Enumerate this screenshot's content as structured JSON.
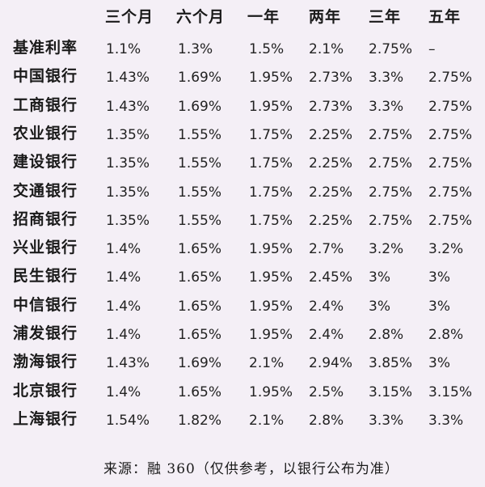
{
  "table": {
    "columns": [
      "三个月",
      "六个月",
      "一年",
      "两年",
      "三年",
      "五年"
    ],
    "rows": [
      {
        "bank": "基准利率",
        "values": [
          "1.1%",
          "1.3%",
          "1.5%",
          "2.1%",
          "2.75%",
          "–"
        ]
      },
      {
        "bank": "中国银行",
        "values": [
          "1.43%",
          "1.69%",
          "1.95%",
          "2.73%",
          "3.3%",
          "2.75%"
        ]
      },
      {
        "bank": "工商银行",
        "values": [
          "1.43%",
          "1.69%",
          "1.95%",
          "2.73%",
          "3.3%",
          "2.75%"
        ]
      },
      {
        "bank": "农业银行",
        "values": [
          "1.35%",
          "1.55%",
          "1.75%",
          "2.25%",
          "2.75%",
          "2.75%"
        ]
      },
      {
        "bank": "建设银行",
        "values": [
          "1.35%",
          "1.55%",
          "1.75%",
          "2.25%",
          "2.75%",
          "2.75%"
        ]
      },
      {
        "bank": "交通银行",
        "values": [
          "1.35%",
          "1.55%",
          "1.75%",
          "2.25%",
          "2.75%",
          "2.75%"
        ]
      },
      {
        "bank": "招商银行",
        "values": [
          "1.35%",
          "1.55%",
          "1.75%",
          "2.25%",
          "2.75%",
          "2.75%"
        ]
      },
      {
        "bank": "兴业银行",
        "values": [
          "1.4%",
          "1.65%",
          "1.95%",
          "2.7%",
          "3.2%",
          "3.2%"
        ]
      },
      {
        "bank": "民生银行",
        "values": [
          "1.4%",
          "1.65%",
          "1.95%",
          "2.45%",
          "3%",
          "3%"
        ]
      },
      {
        "bank": "中信银行",
        "values": [
          "1.4%",
          "1.65%",
          "1.95%",
          "2.4%",
          "3%",
          "3%"
        ]
      },
      {
        "bank": "浦发银行",
        "values": [
          "1.4%",
          "1.65%",
          "1.95%",
          "2.4%",
          "2.8%",
          "2.8%"
        ]
      },
      {
        "bank": "渤海银行",
        "values": [
          "1.43%",
          "1.69%",
          "2.1%",
          "2.94%",
          "3.85%",
          "3%"
        ]
      },
      {
        "bank": "北京银行",
        "values": [
          "1.4%",
          "1.65%",
          "1.95%",
          "2.5%",
          "3.15%",
          "3.15%"
        ]
      },
      {
        "bank": "上海银行",
        "values": [
          "1.54%",
          "1.82%",
          "2.1%",
          "2.8%",
          "3.3%",
          "3.3%"
        ]
      }
    ]
  },
  "footer": "来源：融 360（仅供参考，以银行公布为准）"
}
